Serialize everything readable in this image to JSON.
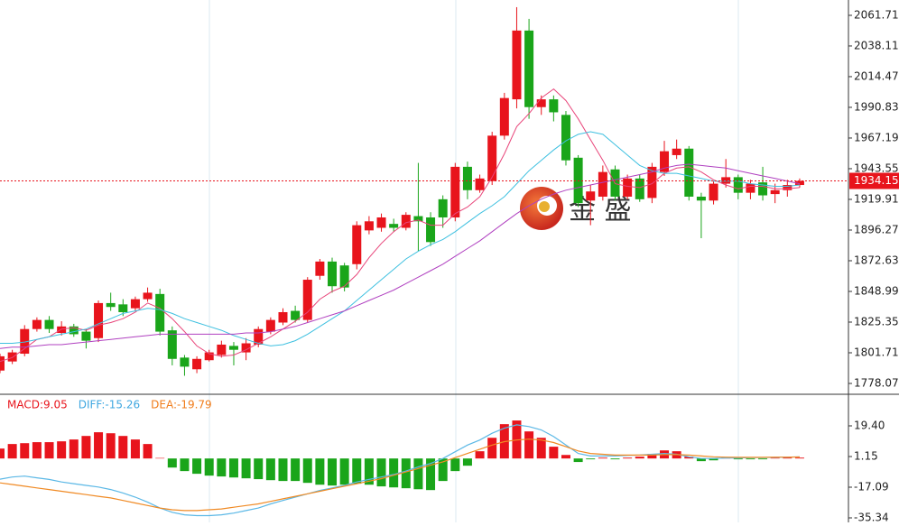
{
  "chart_data": [
    {
      "type": "candlestick",
      "ylim": [
        1769.73,
        2073.53
      ],
      "yticks": [
        2061.71,
        2038.11,
        2014.47,
        1990.83,
        1967.19,
        1943.55,
        1919.91,
        1896.27,
        1872.63,
        1848.99,
        1825.35,
        1801.71,
        1778.07
      ],
      "up_color": "#e8141c",
      "down_color": "#1aa51a",
      "open": [
        1788,
        1795,
        1801,
        1820,
        1827,
        1817,
        1822,
        1818,
        1813,
        1840,
        1839,
        1836,
        1843,
        1847,
        1819,
        1798,
        1789,
        1796,
        1800,
        1807,
        1802,
        1808,
        1818,
        1825,
        1834,
        1827,
        1861,
        1872,
        1869,
        1870,
        1896,
        1898,
        1901,
        1898,
        1907,
        1906,
        1920,
        1906,
        1945,
        1927,
        1934,
        1969,
        1997,
        2050,
        1991,
        1997,
        1985,
        1952,
        1919,
        1922,
        1943,
        1922,
        1936,
        1921,
        1941,
        1954,
        1959,
        1922,
        1919,
        1932,
        1937,
        1925,
        1933,
        1924,
        1927,
        1931
      ],
      "high": [
        1801,
        1804,
        1823,
        1829,
        1830,
        1826,
        1824,
        1820,
        1842,
        1848,
        1843,
        1845,
        1852,
        1851,
        1822,
        1800,
        1799,
        1804,
        1811,
        1810,
        1813,
        1822,
        1829,
        1836,
        1838,
        1860,
        1874,
        1875,
        1871,
        1903,
        1907,
        1909,
        1905,
        1910,
        1948,
        1910,
        1923,
        1948,
        1949,
        1939,
        1972,
        2002,
        2068,
        2059,
        2000,
        2000,
        1988,
        1954,
        1931,
        1946,
        1946,
        1939,
        1939,
        1948,
        1965,
        1966,
        1961,
        1925,
        1934,
        1951,
        1939,
        1935,
        1945,
        1932,
        1935,
        1936
      ],
      "low": [
        1786,
        1793,
        1799,
        1818,
        1817,
        1815,
        1814,
        1805,
        1810,
        1834,
        1830,
        1834,
        1841,
        1815,
        1792,
        1784,
        1786,
        1795,
        1798,
        1792,
        1796,
        1806,
        1816,
        1823,
        1825,
        1825,
        1858,
        1848,
        1849,
        1866,
        1893,
        1895,
        1895,
        1896,
        1880,
        1884,
        1898,
        1903,
        1920,
        1925,
        1931,
        1966,
        1990,
        1982,
        1985,
        1980,
        1946,
        1914,
        1900,
        1919,
        1919,
        1920,
        1918,
        1917,
        1938,
        1951,
        1919,
        1890,
        1916,
        1929,
        1920,
        1920,
        1919,
        1917,
        1922,
        1929
      ],
      "close": [
        1799,
        1802,
        1820,
        1827,
        1820,
        1822,
        1816,
        1811,
        1840,
        1837,
        1833,
        1843,
        1848,
        1818,
        1797,
        1791,
        1797,
        1802,
        1808,
        1804,
        1809,
        1820,
        1827,
        1833,
        1827,
        1858,
        1872,
        1853,
        1852,
        1900,
        1903,
        1906,
        1898,
        1908,
        1903,
        1887,
        1906,
        1945,
        1927,
        1936,
        1969,
        1998,
        2050,
        1991,
        1997,
        1987,
        1950,
        1917,
        1926,
        1941,
        1922,
        1936,
        1920,
        1945,
        1957,
        1959,
        1922,
        1919,
        1932,
        1937,
        1925,
        1932,
        1923,
        1927,
        1931,
        1934.15
      ],
      "series": [
        {
          "color": "#e8457a",
          "values": [
            1795,
            1798,
            1805,
            1812,
            1814,
            1820,
            1821,
            1819,
            1823,
            1825,
            1828,
            1833,
            1840,
            1836,
            1828,
            1818,
            1807,
            1801,
            1799,
            1800,
            1804,
            1809,
            1814,
            1820,
            1826,
            1833,
            1843,
            1849,
            1853,
            1862,
            1875,
            1886,
            1895,
            1902,
            1904,
            1900,
            1900,
            1909,
            1914,
            1922,
            1937,
            1955,
            1976,
            1986,
            1998,
            2005,
            1996,
            1982,
            1966,
            1950,
            1932,
            1930,
            1929,
            1932,
            1940,
            1944,
            1945,
            1941,
            1935,
            1931,
            1928,
            1930,
            1930,
            1928,
            1928,
            1929
          ]
        },
        {
          "color": "#3ec0e0",
          "values": [
            1809,
            1809,
            1810,
            1812,
            1814,
            1816,
            1818,
            1820,
            1824,
            1828,
            1832,
            1834,
            1836,
            1835,
            1832,
            1828,
            1825,
            1822,
            1819,
            1815,
            1812,
            1809,
            1807,
            1808,
            1811,
            1816,
            1822,
            1828,
            1834,
            1842,
            1850,
            1858,
            1866,
            1874,
            1880,
            1885,
            1889,
            1895,
            1902,
            1909,
            1915,
            1922,
            1932,
            1942,
            1950,
            1958,
            1965,
            1970,
            1972,
            1970,
            1962,
            1954,
            1946,
            1942,
            1940,
            1940,
            1938,
            1936,
            1934,
            1934,
            1934,
            1932,
            1931,
            1930,
            1930,
            1931
          ]
        },
        {
          "color": "#b040c0",
          "values": [
            1805,
            1806,
            1806,
            1807,
            1808,
            1808,
            1809,
            1810,
            1811,
            1812,
            1813,
            1814,
            1815,
            1816,
            1816,
            1816,
            1816,
            1816,
            1816,
            1816,
            1817,
            1817,
            1818,
            1820,
            1822,
            1825,
            1828,
            1831,
            1834,
            1838,
            1842,
            1846,
            1850,
            1855,
            1860,
            1865,
            1870,
            1876,
            1882,
            1888,
            1895,
            1902,
            1909,
            1915,
            1920,
            1924,
            1927,
            1929,
            1931,
            1933,
            1935,
            1937,
            1939,
            1941,
            1944,
            1946,
            1947,
            1946,
            1945,
            1944,
            1942,
            1940,
            1938,
            1936,
            1934,
            1932
          ]
        }
      ],
      "current_price": 1934.15,
      "current_price_color": "#e8141c",
      "watermark": "金 盛"
    },
    {
      "type": "macd",
      "ylim": [
        -38.02,
        38.19
      ],
      "yticks": [
        {
          "value": 19.4,
          "label": "19.40"
        },
        1.15,
        -17.09,
        -35.34
      ],
      "readouts": [
        {
          "label": "MACD:9.05",
          "color": "#e8141c"
        },
        {
          "label": "DIFF:-15.26",
          "color": "#3fa7e0"
        },
        {
          "label": "DEA:-19.79",
          "color": "#f07c1a"
        }
      ],
      "up_color": "#e8141c",
      "down_color": "#1aa51a",
      "values": [
        5.9,
        8.6,
        9.1,
        9.7,
        9.7,
        10.2,
        11.3,
        13.4,
        15.6,
        15.0,
        13.4,
        11.3,
        8.6,
        0.3,
        -5.4,
        -7.5,
        -9.1,
        -10.2,
        -10.7,
        -11.3,
        -11.8,
        -12.3,
        -12.9,
        -13.4,
        -13.4,
        -14.5,
        -15.6,
        -16.1,
        -15.6,
        -15.0,
        -15.6,
        -16.6,
        -17.2,
        -17.7,
        -18.3,
        -18.8,
        -13.4,
        -7.5,
        -4.3,
        4.3,
        12.3,
        20.4,
        22.6,
        16.1,
        12.3,
        7.0,
        2.1,
        -2.1,
        -0.5,
        0.5,
        -0.5,
        0.5,
        1.1,
        2.7,
        4.8,
        4.3,
        1.1,
        -1.6,
        -1.1,
        0.5,
        -0.5,
        -0.5,
        -0.5,
        0.3,
        0.5,
        0.5
      ],
      "series": [
        {
          "color": "#5bb8e6",
          "values": [
            -12.3,
            -11,
            -10.5,
            -11.5,
            -12.5,
            -14,
            -15,
            -16,
            -17,
            -18.5,
            -20.5,
            -23,
            -26,
            -29.5,
            -32,
            -33.5,
            -34,
            -34,
            -33.5,
            -32.5,
            -31,
            -29.5,
            -27,
            -25,
            -23,
            -21,
            -19,
            -17.5,
            -16,
            -14,
            -12.5,
            -11,
            -9.5,
            -7.5,
            -5,
            -3,
            0,
            4,
            8,
            11,
            15,
            18,
            20,
            19,
            17,
            13,
            8,
            3,
            1.5,
            1.5,
            1.5,
            1.8,
            2,
            2.5,
            3,
            2.5,
            1,
            0,
            0,
            0.3,
            0.3,
            0.5,
            0.5,
            0.7,
            0.8,
            1
          ]
        },
        {
          "color": "#f08a24",
          "values": [
            -14.5,
            -15.5,
            -16.5,
            -17.5,
            -18.5,
            -19.5,
            -20.5,
            -21.5,
            -22.5,
            -23.5,
            -25,
            -26.5,
            -28,
            -29.5,
            -30.5,
            -31,
            -31,
            -30.5,
            -30,
            -29,
            -28,
            -27,
            -25.5,
            -24,
            -22.5,
            -21,
            -19.5,
            -18,
            -16.5,
            -15,
            -13.5,
            -12,
            -10,
            -8,
            -6,
            -4,
            -2,
            0.5,
            3,
            5.5,
            8,
            10,
            11,
            11.5,
            11,
            9.5,
            7,
            4.5,
            3,
            2.5,
            2,
            2,
            2,
            2,
            2.3,
            2.3,
            2,
            1.5,
            1,
            0.8,
            0.7,
            0.7,
            0.7,
            0.8,
            0.8,
            0.9
          ]
        }
      ]
    }
  ]
}
